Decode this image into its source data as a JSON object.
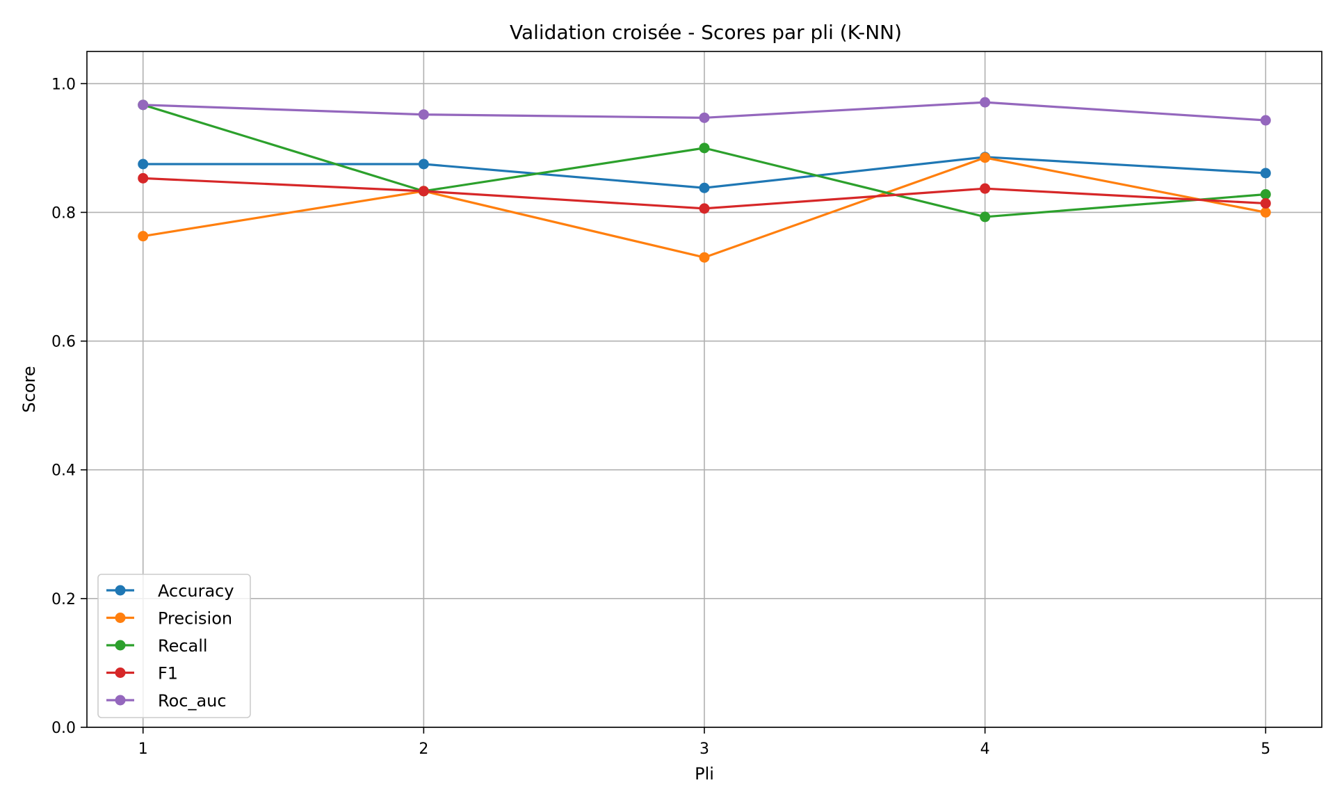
{
  "chart_data": {
    "type": "line",
    "title": "Validation croisée - Scores par pli (K-NN)",
    "xlabel": "Pli",
    "ylabel": "Score",
    "x": [
      1,
      2,
      3,
      4,
      5
    ],
    "xticks": [
      "1",
      "2",
      "3",
      "4",
      "5"
    ],
    "yticks": [
      "0.0",
      "0.2",
      "0.4",
      "0.6",
      "0.8",
      "1.0"
    ],
    "xlim": [
      0.8,
      5.2
    ],
    "ylim": [
      0.0,
      1.05
    ],
    "grid": true,
    "legend_position": "lower-left",
    "series": [
      {
        "name": "Accuracy",
        "color": "#1f77b4",
        "values": [
          0.875,
          0.875,
          0.838,
          0.886,
          0.861
        ]
      },
      {
        "name": "Precision",
        "color": "#ff7f0e",
        "values": [
          0.763,
          0.833,
          0.73,
          0.885,
          0.8
        ]
      },
      {
        "name": "Recall",
        "color": "#2ca02c",
        "values": [
          0.967,
          0.833,
          0.9,
          0.793,
          0.828
        ]
      },
      {
        "name": "F1",
        "color": "#d62728",
        "values": [
          0.853,
          0.833,
          0.806,
          0.837,
          0.814
        ]
      },
      {
        "name": "Roc_auc",
        "color": "#9467bd",
        "values": [
          0.967,
          0.952,
          0.947,
          0.971,
          0.943
        ]
      }
    ]
  }
}
